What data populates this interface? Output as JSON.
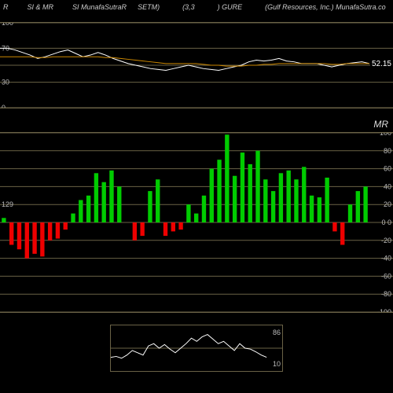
{
  "header": {
    "items": [
      "R",
      "SI & MR",
      "SI MunafaSutraR",
      "SETM)",
      "(3,3",
      ") GURE",
      "(Gulf Resources, Inc.) MunafaSutra.co"
    ]
  },
  "rsi": {
    "min": 0,
    "max": 100,
    "gridlines": [
      0,
      30,
      50,
      70,
      100
    ],
    "left_labels": [
      0,
      30,
      70,
      100
    ],
    "line_color": "#ffffff",
    "ma_color": "#cc8800",
    "grid_color": "#6a6246",
    "current_value": "52.15",
    "current_y": 52.15,
    "data": [
      70,
      70,
      68,
      65,
      62,
      58,
      60,
      63,
      66,
      68,
      64,
      60,
      62,
      65,
      62,
      58,
      55,
      52,
      50,
      48,
      46,
      45,
      44,
      46,
      48,
      50,
      48,
      46,
      45,
      44,
      46,
      48,
      50,
      54,
      56,
      55,
      56,
      58,
      55,
      54,
      52,
      52,
      52,
      50,
      48,
      50,
      52,
      53,
      54,
      52
    ],
    "ma_data": [
      60,
      60,
      60,
      60,
      60,
      59,
      59,
      60,
      60,
      60,
      60,
      60,
      60,
      60,
      59,
      59,
      58,
      57,
      56,
      55,
      54,
      53,
      52,
      52,
      52,
      52,
      52,
      51,
      50,
      50,
      49,
      49,
      49,
      50,
      50,
      51,
      51,
      52,
      52,
      52,
      52,
      52,
      52,
      52,
      51,
      51,
      52,
      52,
      52,
      52
    ]
  },
  "mr": {
    "title": "MR",
    "min": -100,
    "max": 100,
    "gridlines": [
      -100,
      -80,
      -60,
      -40,
      -20,
      0,
      20,
      40,
      60,
      80,
      100
    ],
    "right_labels": [
      -100,
      -80,
      -60,
      -40,
      -20,
      "0  0",
      20,
      40,
      60,
      80,
      100
    ],
    "left_label": {
      "value": "129",
      "y": 20
    },
    "grid_color": "#6a6246",
    "pos_color": "#00cc00",
    "neg_color": "#ee0000",
    "bars": [
      5,
      -25,
      -30,
      -40,
      -35,
      -38,
      -20,
      -18,
      -8,
      10,
      25,
      30,
      55,
      45,
      58,
      40,
      0,
      -20,
      -15,
      35,
      48,
      -15,
      -10,
      -8,
      20,
      10,
      30,
      60,
      70,
      98,
      52,
      78,
      65,
      80,
      48,
      35,
      55,
      58,
      48,
      62,
      30,
      28,
      50,
      -10,
      -25,
      20,
      35,
      40
    ]
  },
  "mini": {
    "top_label": "86",
    "bottom_label": "10",
    "line_color": "#ffffff",
    "grid_color": "#6a6246",
    "data": [
      30,
      32,
      28,
      35,
      45,
      40,
      35,
      55,
      60,
      50,
      58,
      48,
      40,
      50,
      60,
      72,
      65,
      75,
      80,
      70,
      60,
      65,
      55,
      45,
      60,
      50,
      48,
      42,
      35,
      30
    ]
  },
  "colors": {
    "bg": "#000000",
    "grid": "#6a6246",
    "text": "#cccccc"
  }
}
